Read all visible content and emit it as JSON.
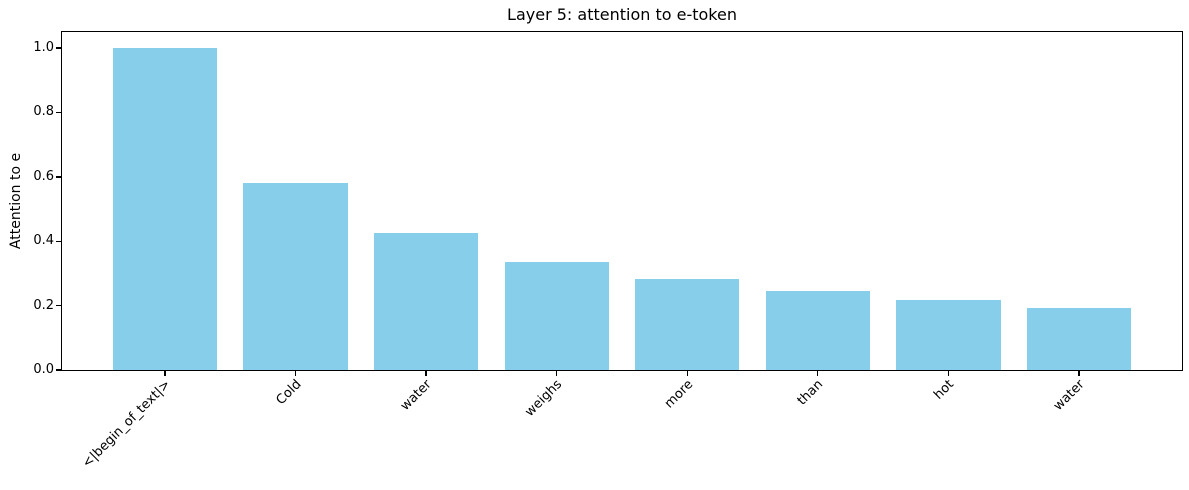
{
  "chart_data": {
    "type": "bar",
    "title": "Layer 5: attention to e-token",
    "xlabel": "",
    "ylabel": "Attention to e",
    "categories": [
      "<|begin_of_text|>",
      "Cold",
      "water",
      "weighs",
      "more",
      "than",
      "hot",
      "water"
    ],
    "values": [
      1.0,
      0.58,
      0.425,
      0.335,
      0.283,
      0.247,
      0.218,
      0.193
    ],
    "yticks": [
      0.0,
      0.2,
      0.4,
      0.6,
      0.8,
      1.0
    ],
    "ytick_labels": [
      "0.0",
      "0.2",
      "0.4",
      "0.6",
      "0.8",
      "1.0"
    ],
    "ylim": [
      0,
      1.05
    ],
    "bar_color": "#87ceeb",
    "spine_color": "#000000",
    "grid": false,
    "legend_position": "none",
    "xtick_rotation_degrees": 45
  }
}
